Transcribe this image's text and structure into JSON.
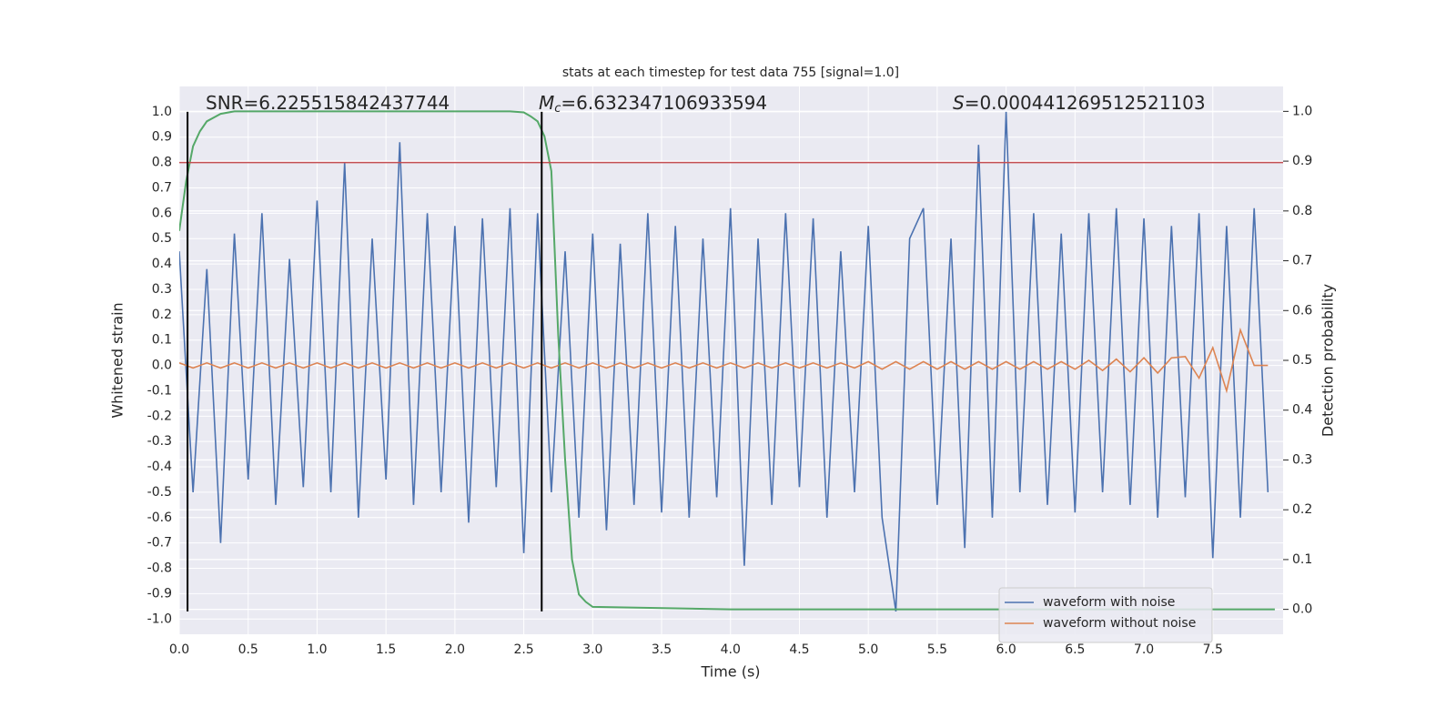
{
  "chart_data": {
    "type": "line",
    "title": "stats at each timestep for test data 755 [signal=1.0]",
    "xlabel": "Time (s)",
    "ylabel": "Whitened strain",
    "y2label": "Detection probability",
    "annotations": [
      {
        "text": "SNR=6.225515842437744"
      },
      {
        "symbol": "M",
        "sub": "c",
        "text": "=6.632347106933594"
      },
      {
        "symbol": "S",
        "text": "=0.000441269512521103"
      }
    ],
    "x": [
      0,
      0.1,
      0.2,
      0.3,
      0.4,
      0.5,
      0.6,
      0.7,
      0.8,
      0.9,
      1.0,
      1.1,
      1.2,
      1.3,
      1.4,
      1.5,
      1.6,
      1.7,
      1.8,
      1.9,
      2.0,
      2.1,
      2.2,
      2.3,
      2.4,
      2.5,
      2.6,
      2.7,
      2.8,
      2.9,
      3.0,
      3.1,
      3.2,
      3.3,
      3.4,
      3.5,
      3.6,
      3.7,
      3.8,
      3.9,
      4.0,
      4.1,
      4.2,
      4.3,
      4.4,
      4.5,
      4.6,
      4.7,
      4.8,
      4.9,
      5.0,
      5.1,
      5.2,
      5.3,
      5.4,
      5.5,
      5.6,
      5.7,
      5.8,
      5.9,
      6.0,
      6.1,
      6.2,
      6.3,
      6.4,
      6.5,
      6.6,
      6.7,
      6.8,
      6.9,
      7.0,
      7.1,
      7.2,
      7.3,
      7.4,
      7.5,
      7.6,
      7.7,
      7.8,
      7.9
    ],
    "series": [
      {
        "name": "waveform with noise",
        "color": "#4c72b0",
        "values": [
          0.45,
          -0.5,
          0.38,
          -0.7,
          0.52,
          -0.45,
          0.6,
          -0.55,
          0.42,
          -0.48,
          0.65,
          -0.5,
          0.8,
          -0.6,
          0.5,
          -0.45,
          0.88,
          -0.55,
          0.6,
          -0.5,
          0.55,
          -0.62,
          0.58,
          -0.48,
          0.62,
          -0.74,
          0.6,
          -0.5,
          0.45,
          -0.6,
          0.52,
          -0.65,
          0.48,
          -0.55,
          0.6,
          -0.58,
          0.55,
          -0.6,
          0.5,
          -0.52,
          0.62,
          -0.79,
          0.5,
          -0.55,
          0.6,
          -0.48,
          0.58,
          -0.6,
          0.45,
          -0.5,
          0.55,
          -0.6,
          -0.97,
          0.5,
          0.62,
          -0.55,
          0.5,
          -0.72,
          0.87,
          -0.6,
          1.0,
          -0.5,
          0.6,
          -0.55,
          0.52,
          -0.58,
          0.6,
          -0.5,
          0.62,
          -0.55,
          0.58,
          -0.6,
          0.55,
          -0.52,
          0.6,
          -0.76,
          0.55,
          -0.6,
          0.62,
          -0.5
        ]
      },
      {
        "name": "waveform without noise",
        "color": "#dd8452",
        "values": [
          0.01,
          -0.01,
          0.01,
          -0.01,
          0.01,
          -0.01,
          0.01,
          -0.01,
          0.01,
          -0.01,
          0.01,
          -0.01,
          0.01,
          -0.01,
          0.01,
          -0.01,
          0.01,
          -0.01,
          0.01,
          -0.01,
          0.01,
          -0.01,
          0.01,
          -0.01,
          0.01,
          -0.01,
          0.01,
          -0.01,
          0.01,
          -0.01,
          0.01,
          -0.01,
          0.01,
          -0.01,
          0.01,
          -0.01,
          0.01,
          -0.01,
          0.01,
          -0.01,
          0.01,
          -0.01,
          0.01,
          -0.01,
          0.01,
          -0.01,
          0.01,
          -0.01,
          0.01,
          -0.01,
          0.015,
          -0.015,
          0.015,
          -0.015,
          0.015,
          -0.015,
          0.015,
          -0.015,
          0.015,
          -0.015,
          0.015,
          -0.015,
          0.015,
          -0.015,
          0.015,
          -0.015,
          0.02,
          -0.02,
          0.025,
          -0.025,
          0.03,
          -0.03,
          0.03,
          0.035,
          -0.05,
          0.07,
          -0.1,
          0.14,
          0,
          0
        ]
      },
      {
        "color": "#55a868",
        "axis": "y2",
        "x": [
          0,
          0.05,
          0.1,
          0.15,
          0.2,
          0.3,
          0.4,
          0.5,
          1.0,
          1.5,
          2.0,
          2.4,
          2.5,
          2.55,
          2.6,
          2.65,
          2.7,
          2.75,
          2.8,
          2.85,
          2.9,
          2.95,
          3.0,
          4.0,
          5.0,
          6.0,
          7.0,
          7.95
        ],
        "values": [
          0.76,
          0.86,
          0.93,
          0.96,
          0.98,
          0.995,
          1.0,
          1.0,
          1.0,
          1.0,
          1.0,
          1.0,
          0.998,
          0.99,
          0.98,
          0.95,
          0.88,
          0.55,
          0.3,
          0.1,
          0.03,
          0.015,
          0.005,
          0.0,
          0.0,
          0.0,
          0.0,
          0.0
        ]
      }
    ],
    "vlines": [
      0.06,
      2.63
    ],
    "vline_span": [
      -0.97,
      1.0
    ],
    "vline_color": "#000000",
    "hline": 0.8,
    "hline_color": "#c44e52",
    "xlim": [
      0,
      8.01
    ],
    "ylim": [
      -1.06,
      1.1
    ],
    "y2lim": [
      -0.05,
      1.05
    ],
    "xticks": [
      {
        "value": 0,
        "label": "0.0"
      },
      0.5,
      {
        "value": 1,
        "label": "1.0"
      },
      1.5,
      {
        "value": 2,
        "label": "2.0"
      },
      2.5,
      {
        "value": 3,
        "label": "3.0"
      },
      3.5,
      {
        "value": 4,
        "label": "4.0"
      },
      4.5,
      {
        "value": 5,
        "label": "5.0"
      },
      5.5,
      {
        "value": 6,
        "label": "6.0"
      },
      6.5,
      {
        "value": 7,
        "label": "7.0"
      },
      7.5
    ],
    "yticks": [
      {
        "value": -1,
        "label": "-1.0"
      },
      -0.9,
      -0.8,
      -0.7,
      -0.6,
      -0.5,
      -0.4,
      -0.3,
      -0.2,
      -0.1,
      {
        "value": 0,
        "label": "0.0"
      },
      0.1,
      0.2,
      0.3,
      0.4,
      0.5,
      0.6,
      0.7,
      0.8,
      0.9,
      {
        "value": 1,
        "label": "1.0"
      }
    ],
    "y2ticks": [
      {
        "value": 0,
        "label": "0.0"
      },
      0.1,
      0.2,
      0.3,
      0.4,
      0.5,
      0.6,
      0.7,
      0.8,
      0.9,
      {
        "value": 1,
        "label": "1.0"
      }
    ],
    "grid": true,
    "legend": "lower right"
  }
}
